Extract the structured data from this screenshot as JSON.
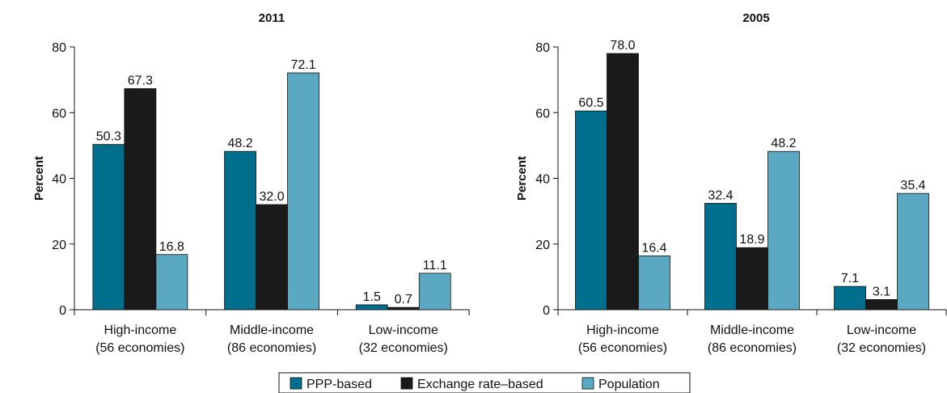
{
  "colors": {
    "ppp": "#006F8E",
    "exchange": "#1A1A1A",
    "population": "#5BA8C2",
    "axis": "#111111"
  },
  "legend": {
    "items": [
      "PPP-based",
      "Exchange rate–based",
      "Population"
    ]
  },
  "chart_data": [
    {
      "type": "bar",
      "title": "2011",
      "ylabel": "Percent",
      "xlabel": "",
      "ylim": [
        0,
        80
      ],
      "yticks": [
        0,
        20,
        40,
        60,
        80
      ],
      "categories": [
        [
          "High-income",
          "(56 economies)"
        ],
        [
          "Middle-income",
          "(86 economies)"
        ],
        [
          "Low-income",
          "(32 economies)"
        ]
      ],
      "series": [
        {
          "name": "PPP-based",
          "values": [
            50.3,
            48.2,
            1.5
          ],
          "labels": [
            "50.3",
            "48.2",
            "1.5"
          ]
        },
        {
          "name": "Exchange rate–based",
          "values": [
            67.3,
            32.0,
            0.7
          ],
          "labels": [
            "67.3",
            "32.0",
            "0.7"
          ]
        },
        {
          "name": "Population",
          "values": [
            16.8,
            72.1,
            11.1
          ],
          "labels": [
            "16.8",
            "72.1",
            "11.1"
          ]
        }
      ]
    },
    {
      "type": "bar",
      "title": "2005",
      "ylabel": "Percent",
      "xlabel": "",
      "ylim": [
        0,
        80
      ],
      "yticks": [
        0,
        20,
        40,
        60,
        80
      ],
      "categories": [
        [
          "High-income",
          "(56 economies)"
        ],
        [
          "Middle-income",
          "(86 economies)"
        ],
        [
          "Low-income",
          "(32 economies)"
        ]
      ],
      "series": [
        {
          "name": "PPP-based",
          "values": [
            60.5,
            32.4,
            7.1
          ],
          "labels": [
            "60.5",
            "32.4",
            "7.1"
          ]
        },
        {
          "name": "Exchange rate–based",
          "values": [
            78.0,
            18.9,
            3.1
          ],
          "labels": [
            "78.0",
            "18.9",
            "3.1"
          ]
        },
        {
          "name": "Population",
          "values": [
            16.4,
            48.2,
            35.4
          ],
          "labels": [
            "16.4",
            "48.2",
            "35.4"
          ]
        }
      ]
    }
  ]
}
